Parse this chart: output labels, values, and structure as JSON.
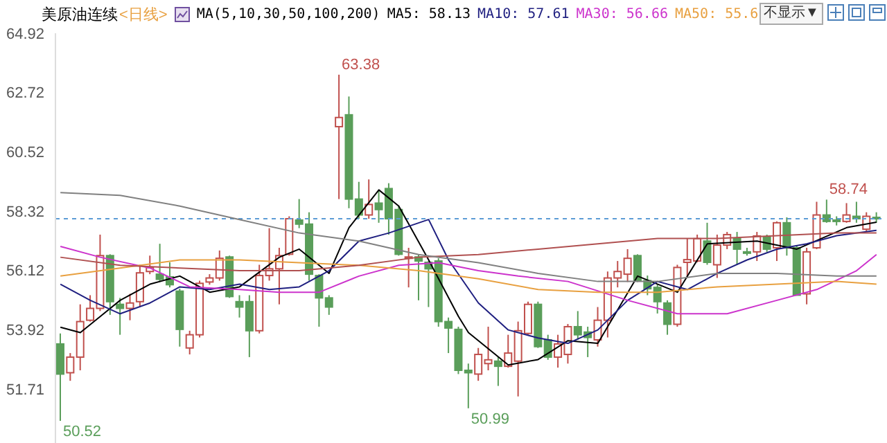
{
  "chart_data": {
    "type": "candlestick",
    "title": "美原油连续",
    "subtitle": "<日线>",
    "categories": [
      null,
      null,
      null,
      null,
      null,
      null,
      null,
      null,
      null,
      null,
      null,
      null,
      null,
      null,
      null,
      null,
      null,
      null,
      null,
      null,
      null,
      null,
      null,
      null,
      null,
      null,
      null,
      null,
      null,
      null,
      null,
      null,
      null,
      null,
      null,
      null,
      null,
      null,
      null,
      null,
      null,
      null,
      null,
      null,
      null,
      null,
      null,
      null,
      null,
      null,
      null,
      null,
      null,
      null,
      null,
      null,
      null,
      null,
      null,
      null,
      null,
      null,
      null,
      null,
      null,
      null,
      null,
      null,
      null,
      null,
      null,
      null,
      null,
      null,
      null,
      null,
      null,
      null,
      null,
      null,
      null,
      null,
      null
    ],
    "ohlc": [
      [
        53.38,
        53.77,
        50.52,
        52.26
      ],
      [
        52.31,
        53.04,
        52.01,
        52.89
      ],
      [
        52.89,
        54.85,
        52.4,
        54.21
      ],
      [
        54.26,
        55.19,
        54.21,
        54.7
      ],
      [
        54.7,
        57.44,
        54.6,
        56.66
      ],
      [
        56.66,
        56.71,
        54.46,
        54.95
      ],
      [
        54.85,
        55.09,
        53.72,
        54.7
      ],
      [
        54.7,
        55.24,
        54.26,
        54.9
      ],
      [
        54.95,
        56.32,
        54.75,
        56.02
      ],
      [
        56.07,
        56.66,
        55.97,
        56.22
      ],
      [
        55.97,
        57.1,
        55.68,
        55.78
      ],
      [
        55.87,
        56.41,
        55.48,
        55.58
      ],
      [
        55.34,
        55.43,
        53.28,
        53.92
      ],
      [
        53.23,
        53.87,
        52.99,
        53.72
      ],
      [
        53.72,
        55.73,
        53.62,
        55.63
      ],
      [
        55.68,
        55.97,
        55.58,
        55.83
      ],
      [
        55.83,
        56.85,
        55.73,
        56.56
      ],
      [
        56.61,
        56.66,
        55.09,
        55.14
      ],
      [
        54.95,
        55.19,
        54.36,
        54.75
      ],
      [
        54.95,
        55.19,
        52.89,
        53.87
      ],
      [
        53.87,
        56.32,
        53.77,
        55.92
      ],
      [
        55.92,
        57.68,
        55.73,
        56.17
      ],
      [
        56.17,
        56.95,
        54.85,
        56.66
      ],
      [
        56.71,
        58.12,
        56.66,
        58.03
      ],
      [
        57.98,
        58.76,
        57.68,
        57.83
      ],
      [
        57.83,
        58.27,
        55.73,
        55.97
      ],
      [
        55.92,
        55.97,
        54.02,
        55.09
      ],
      [
        55.09,
        55.19,
        54.46,
        54.75
      ],
      [
        61.45,
        63.38,
        58.76,
        61.79
      ],
      [
        61.89,
        62.57,
        58.42,
        58.76
      ],
      [
        58.76,
        59.4,
        58.03,
        58.17
      ],
      [
        58.17,
        59.49,
        58.03,
        58.56
      ],
      [
        58.61,
        59.1,
        57.88,
        58.37
      ],
      [
        59.15,
        59.35,
        57.44,
        58.03
      ],
      [
        58.37,
        58.52,
        56.66,
        56.71
      ],
      [
        56.56,
        56.95,
        55.48,
        56.61
      ],
      [
        56.61,
        56.71,
        55.0,
        56.46
      ],
      [
        56.41,
        56.46,
        54.75,
        56.17
      ],
      [
        56.46,
        56.56,
        54.02,
        54.21
      ],
      [
        54.21,
        54.36,
        53.04,
        53.97
      ],
      [
        53.92,
        54.02,
        52.26,
        52.4
      ],
      [
        52.4,
        52.65,
        50.99,
        52.31
      ],
      [
        52.26,
        53.23,
        52.01,
        52.99
      ],
      [
        52.65,
        54.02,
        52.4,
        52.79
      ],
      [
        52.74,
        52.89,
        51.82,
        52.55
      ],
      [
        52.55,
        53.72,
        52.5,
        53.04
      ],
      [
        52.74,
        54.21,
        51.43,
        53.87
      ],
      [
        53.77,
        54.95,
        53.72,
        54.85
      ],
      [
        54.85,
        54.95,
        53.23,
        53.28
      ],
      [
        53.53,
        53.72,
        52.79,
        52.89
      ],
      [
        52.89,
        53.72,
        52.5,
        53.38
      ],
      [
        52.99,
        54.12,
        52.65,
        54.02
      ],
      [
        54.02,
        54.6,
        53.53,
        53.72
      ],
      [
        53.82,
        54.02,
        52.89,
        53.62
      ],
      [
        53.53,
        54.75,
        53.28,
        54.26
      ],
      [
        54.26,
        56.07,
        53.62,
        55.83
      ],
      [
        55.83,
        56.46,
        55.48,
        56.07
      ],
      [
        55.97,
        56.9,
        55.68,
        56.56
      ],
      [
        56.66,
        56.71,
        55.68,
        55.73
      ],
      [
        55.73,
        55.92,
        55.19,
        55.43
      ],
      [
        55.48,
        55.58,
        54.51,
        54.95
      ],
      [
        54.9,
        55.0,
        53.72,
        54.11
      ],
      [
        54.11,
        56.32,
        54.02,
        56.22
      ],
      [
        56.41,
        57.29,
        55.83,
        56.51
      ],
      [
        56.46,
        57.44,
        56.41,
        57.29
      ],
      [
        57.2,
        57.88,
        56.32,
        56.41
      ],
      [
        56.32,
        57.44,
        55.83,
        57.05
      ],
      [
        57.05,
        57.54,
        56.9,
        57.44
      ],
      [
        57.29,
        57.54,
        56.32,
        56.9
      ],
      [
        56.8,
        56.95,
        56.66,
        56.76
      ],
      [
        56.8,
        57.54,
        56.46,
        57.39
      ],
      [
        57.34,
        57.44,
        56.8,
        56.9
      ],
      [
        56.95,
        57.93,
        56.46,
        57.88
      ],
      [
        57.88,
        58.08,
        56.66,
        56.95
      ],
      [
        56.95,
        57.05,
        55.19,
        55.19
      ],
      [
        55.24,
        56.95,
        54.85,
        56.8
      ],
      [
        56.95,
        58.66,
        56.9,
        58.17
      ],
      [
        58.17,
        58.74,
        57.88,
        57.93
      ],
      [
        57.98,
        58.12,
        57.78,
        57.93
      ],
      [
        57.93,
        58.61,
        57.88,
        58.17
      ],
      [
        58.12,
        58.66,
        57.88,
        58.03
      ],
      [
        57.64,
        58.27,
        57.54,
        58.12
      ],
      [
        58.08,
        58.27,
        57.88,
        58.03
      ]
    ],
    "series": [
      {
        "type": "line",
        "name": "MA5: 58.13",
        "color": "#000000",
        "values": [
          54.0,
          null,
          53.8,
          null,
          54.4,
          null,
          55.0,
          null,
          null,
          55.6,
          null,
          null,
          55.9,
          null,
          null,
          55.3,
          null,
          null,
          55.5,
          null,
          null,
          null,
          56.6,
          null,
          56.9,
          null,
          null,
          56.0,
          null,
          57.7,
          null,
          null,
          59.1,
          null,
          58.5,
          null,
          null,
          56.5,
          null,
          null,
          54.4,
          53.8,
          null,
          null,
          null,
          52.6,
          null,
          null,
          52.8,
          null,
          null,
          53.5,
          null,
          null,
          53.4,
          null,
          null,
          null,
          55.9,
          null,
          null,
          null,
          55.3,
          null,
          null,
          57.1,
          null,
          null,
          null,
          null,
          57.2,
          null,
          null,
          null,
          56.9,
          null,
          null,
          null,
          null,
          57.7,
          null,
          null,
          57.9
        ]
      },
      {
        "type": "line",
        "name": "MA10: 57.61",
        "color": "#1f1f80",
        "values": [
          55.6,
          null,
          null,
          55.0,
          null,
          null,
          54.5,
          null,
          null,
          54.9,
          null,
          null,
          55.5,
          null,
          null,
          55.4,
          null,
          null,
          55.6,
          null,
          null,
          55.4,
          null,
          null,
          55.5,
          null,
          null,
          56.1,
          null,
          null,
          57.2,
          null,
          null,
          57.5,
          null,
          null,
          null,
          58.0,
          null,
          56.5,
          null,
          null,
          54.9,
          null,
          null,
          53.9,
          null,
          null,
          53.6,
          null,
          null,
          53.4,
          null,
          null,
          53.9,
          null,
          null,
          55.0,
          null,
          null,
          55.7,
          null,
          null,
          55.4,
          null,
          null,
          56.0,
          null,
          null,
          56.5,
          null,
          null,
          56.9,
          null,
          null,
          57.1,
          null,
          null,
          57.4,
          null,
          null,
          null,
          57.6
        ]
      },
      {
        "type": "line",
        "name": "MA30: 56.66",
        "color": "#cc33cc",
        "values": [
          57.0,
          null,
          null,
          null,
          56.6,
          null,
          null,
          null,
          null,
          56.2,
          null,
          null,
          null,
          55.5,
          null,
          null,
          null,
          null,
          55.4,
          null,
          null,
          null,
          55.3,
          null,
          null,
          null,
          55.3,
          null,
          null,
          null,
          55.9,
          null,
          null,
          null,
          56.3,
          null,
          null,
          null,
          56.4,
          null,
          null,
          null,
          56.1,
          null,
          null,
          null,
          55.9,
          null,
          null,
          null,
          null,
          55.7,
          null,
          null,
          null,
          null,
          null,
          55.0,
          null,
          null,
          null,
          null,
          54.5,
          null,
          null,
          null,
          null,
          54.5,
          null,
          null,
          null,
          null,
          55.0,
          null,
          null,
          null,
          55.4,
          null,
          null,
          null,
          56.1,
          null,
          56.7
        ]
      },
      {
        "type": "line",
        "name": "MA50: 55.6",
        "color": "#e8a040",
        "values": [
          55.9,
          null,
          null,
          null,
          null,
          null,
          56.2,
          null,
          null,
          null,
          null,
          null,
          56.5,
          null,
          null,
          null,
          null,
          null,
          56.5,
          null,
          null,
          null,
          null,
          null,
          56.4,
          null,
          null,
          null,
          null,
          null,
          56.3,
          null,
          null,
          null,
          null,
          null,
          56.1,
          null,
          null,
          null,
          null,
          null,
          55.8,
          null,
          null,
          null,
          null,
          null,
          55.4,
          null,
          null,
          null,
          null,
          null,
          55.3,
          null,
          null,
          null,
          null,
          null,
          55.3,
          null,
          null,
          null,
          null,
          null,
          55.5,
          null,
          null,
          null,
          null,
          null,
          55.6,
          null,
          null,
          null,
          null,
          null,
          55.7,
          null,
          null,
          null,
          55.6
        ]
      },
      {
        "type": "line",
        "color": "#b05050",
        "values": [
          56.6,
          null,
          null,
          null,
          null,
          null,
          56.3,
          null,
          null,
          null,
          null,
          null,
          56.2,
          null,
          null,
          null,
          null,
          null,
          56.1,
          null,
          null,
          null,
          null,
          null,
          56.1,
          null,
          null,
          null,
          null,
          null,
          56.3,
          null,
          null,
          null,
          null,
          null,
          56.6,
          null,
          null,
          null,
          null,
          null,
          56.7,
          null,
          null,
          null,
          null,
          null,
          56.9,
          null,
          null,
          null,
          null,
          null,
          57.1,
          null,
          null,
          null,
          null,
          null,
          57.3,
          null,
          null,
          null,
          null,
          null,
          57.3,
          null,
          null,
          null,
          null,
          null,
          57.4,
          null,
          null,
          null,
          null,
          null,
          57.5,
          null,
          null,
          null,
          57.5
        ]
      },
      {
        "type": "line",
        "color": "#808080",
        "values": [
          59.0,
          null,
          null,
          null,
          null,
          null,
          58.9,
          null,
          null,
          null,
          null,
          null,
          58.5,
          null,
          null,
          null,
          null,
          null,
          58.0,
          null,
          null,
          null,
          null,
          null,
          57.5,
          null,
          null,
          null,
          null,
          null,
          57.2,
          null,
          null,
          null,
          null,
          null,
          56.7,
          null,
          null,
          null,
          null,
          null,
          56.4,
          null,
          null,
          null,
          null,
          null,
          56.0,
          null,
          null,
          null,
          null,
          null,
          55.7,
          null,
          null,
          null,
          null,
          null,
          55.7,
          null,
          null,
          null,
          null,
          null,
          56.0,
          null,
          null,
          null,
          null,
          null,
          56.0,
          null,
          null,
          null,
          null,
          null,
          55.9,
          null,
          null,
          null,
          55.9
        ]
      }
    ],
    "ylim": [
      49.7,
      64.92
    ],
    "yticks": [
      51.71,
      53.92,
      56.12,
      58.32,
      60.52,
      62.72,
      64.92
    ],
    "ref_lines": [
      {
        "axis": "y",
        "value": 58.03,
        "color": "#5b9bd5",
        "line_style": "dashed"
      }
    ],
    "annotations": [
      "MA(5,10,30,50,100,200)",
      "不显示▼",
      "63.38",
      "50.52",
      "50.99",
      "58.74"
    ],
    "legend": "top",
    "tick_labels": "y",
    "marker": "none"
  }
}
